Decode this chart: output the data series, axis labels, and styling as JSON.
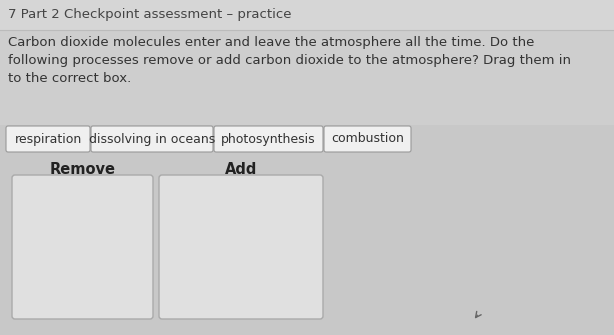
{
  "title": "7 Part 2 Checkpoint assessment – practice",
  "body_lines": [
    "Carbon dioxide molecules enter and leave the atmosphere all the time. Do the",
    "following processes remove or add carbon dioxide to the atmosphere? Drag them in",
    "to the correct box."
  ],
  "tags": [
    "respiration",
    "dissolving in oceans",
    "photosynthesis",
    "combustion"
  ],
  "box_labels": [
    "Remove",
    "Add"
  ],
  "bg_top": "#d0cece",
  "bg_bottom": "#c8c8c8",
  "tag_bg_color": "#f0f0f0",
  "tag_border_color": "#999999",
  "box_bg_color": "#e4e4e4",
  "box_border_color": "#aaaaaa",
  "title_fontsize": 9.5,
  "body_fontsize": 9.5,
  "tag_fontsize": 9.0,
  "label_fontsize": 10.5,
  "title_color": "#444444",
  "body_color": "#333333",
  "tag_text_color": "#333333",
  "label_color": "#222222"
}
